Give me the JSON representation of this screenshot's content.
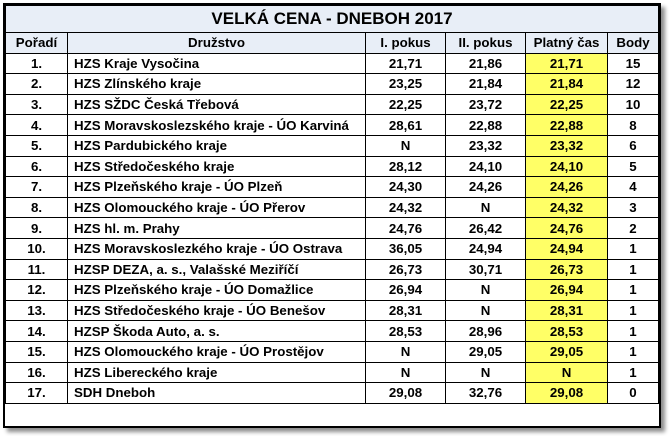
{
  "title": "VELKÁ CENA - DNEBOH  2017",
  "headers": {
    "rank": "Pořadí",
    "team": "Družstvo",
    "attempt1": "I. pokus",
    "attempt2": "II. pokus",
    "valid_time": "Platný čas",
    "points": "Body"
  },
  "highlight_color": "#ffff66",
  "rows": [
    {
      "rank": "1.",
      "team": "HZS Kraje Vysočina",
      "attempt1": "21,71",
      "attempt2": "21,86",
      "valid_time": "21,71",
      "points": "15"
    },
    {
      "rank": "2.",
      "team": "HZS Zlínského kraje",
      "attempt1": "23,25",
      "attempt2": "21,84",
      "valid_time": "21,84",
      "points": "12"
    },
    {
      "rank": "3.",
      "team": "HZS SŽDC Česká Třebová",
      "attempt1": "22,25",
      "attempt2": "23,72",
      "valid_time": "22,25",
      "points": "10"
    },
    {
      "rank": "4.",
      "team": "HZS Moravskoslezského kraje -  ÚO Karviná",
      "attempt1": "28,61",
      "attempt2": "22,88",
      "valid_time": "22,88",
      "points": "8"
    },
    {
      "rank": "5.",
      "team": "HZS Pardubického kraje",
      "attempt1": "N",
      "attempt2": "23,32",
      "valid_time": "23,32",
      "points": "6"
    },
    {
      "rank": "6.",
      "team": "HZS Středočeského kraje",
      "attempt1": "28,12",
      "attempt2": "24,10",
      "valid_time": "24,10",
      "points": "5"
    },
    {
      "rank": "7.",
      "team": "HZS Plzeňského kraje - ÚO Plzeň",
      "attempt1": "24,30",
      "attempt2": "24,26",
      "valid_time": "24,26",
      "points": "4"
    },
    {
      "rank": "8.",
      "team": "HZS Olomouckého kraje - ÚO Přerov",
      "attempt1": "24,32",
      "attempt2": "N",
      "valid_time": "24,32",
      "points": "3"
    },
    {
      "rank": "9.",
      "team": "HZS hl. m. Prahy",
      "attempt1": "24,76",
      "attempt2": "26,42",
      "valid_time": "24,76",
      "points": "2"
    },
    {
      "rank": "10.",
      "team": "HZS Moravskoslezkého kraje - ÚO Ostrava",
      "attempt1": "36,05",
      "attempt2": "24,94",
      "valid_time": "24,94",
      "points": "1"
    },
    {
      "rank": "11.",
      "team": "HZSP DEZA, a. s., Valašské Meziříčí",
      "attempt1": "26,73",
      "attempt2": "30,71",
      "valid_time": "26,73",
      "points": "1"
    },
    {
      "rank": "12.",
      "team": "HZS Plzeňského kraje - ÚO Domažlice",
      "attempt1": "26,94",
      "attempt2": "N",
      "valid_time": "26,94",
      "points": "1"
    },
    {
      "rank": "13.",
      "team": "HZS Středočeského kraje - ÚO Benešov",
      "attempt1": "28,31",
      "attempt2": "N",
      "valid_time": "28,31",
      "points": "1"
    },
    {
      "rank": "14.",
      "team": "HZSP Škoda Auto, a. s.",
      "attempt1": "28,53",
      "attempt2": "28,96",
      "valid_time": "28,53",
      "points": "1"
    },
    {
      "rank": "15.",
      "team": "HZS Olomouckého kraje - ÚO Prostějov",
      "attempt1": "N",
      "attempt2": "29,05",
      "valid_time": "29,05",
      "points": "1"
    },
    {
      "rank": "16.",
      "team": "HZS Libereckého kraje",
      "attempt1": "N",
      "attempt2": "N",
      "valid_time": "N",
      "points": "1"
    },
    {
      "rank": "17.",
      "team": "SDH Dneboh",
      "attempt1": "29,08",
      "attempt2": "32,76",
      "valid_time": "29,08",
      "points": "0"
    }
  ]
}
